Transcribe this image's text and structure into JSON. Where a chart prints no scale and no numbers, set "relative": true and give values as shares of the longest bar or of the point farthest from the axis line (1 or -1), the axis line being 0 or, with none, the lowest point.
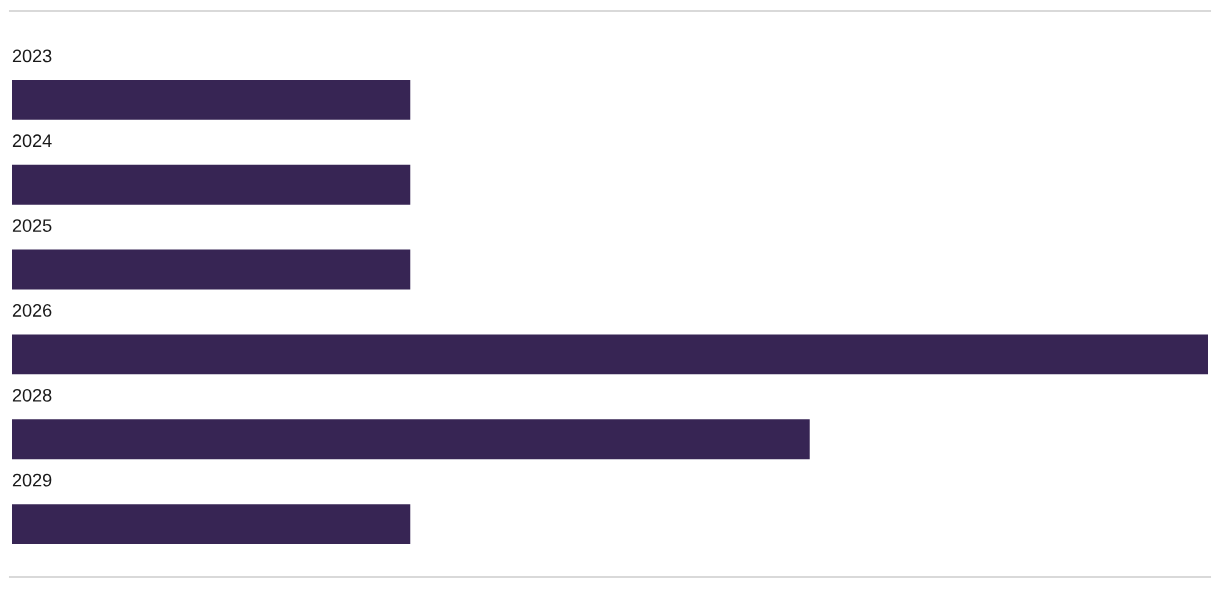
{
  "chart_data": {
    "type": "bar",
    "orientation": "horizontal",
    "relative": true,
    "categories": [
      "2023",
      "2024",
      "2025",
      "2026",
      "2028",
      "2029"
    ],
    "values": [
      0.333,
      0.333,
      0.333,
      1,
      0.667,
      0.333
    ],
    "color": "#372554"
  }
}
